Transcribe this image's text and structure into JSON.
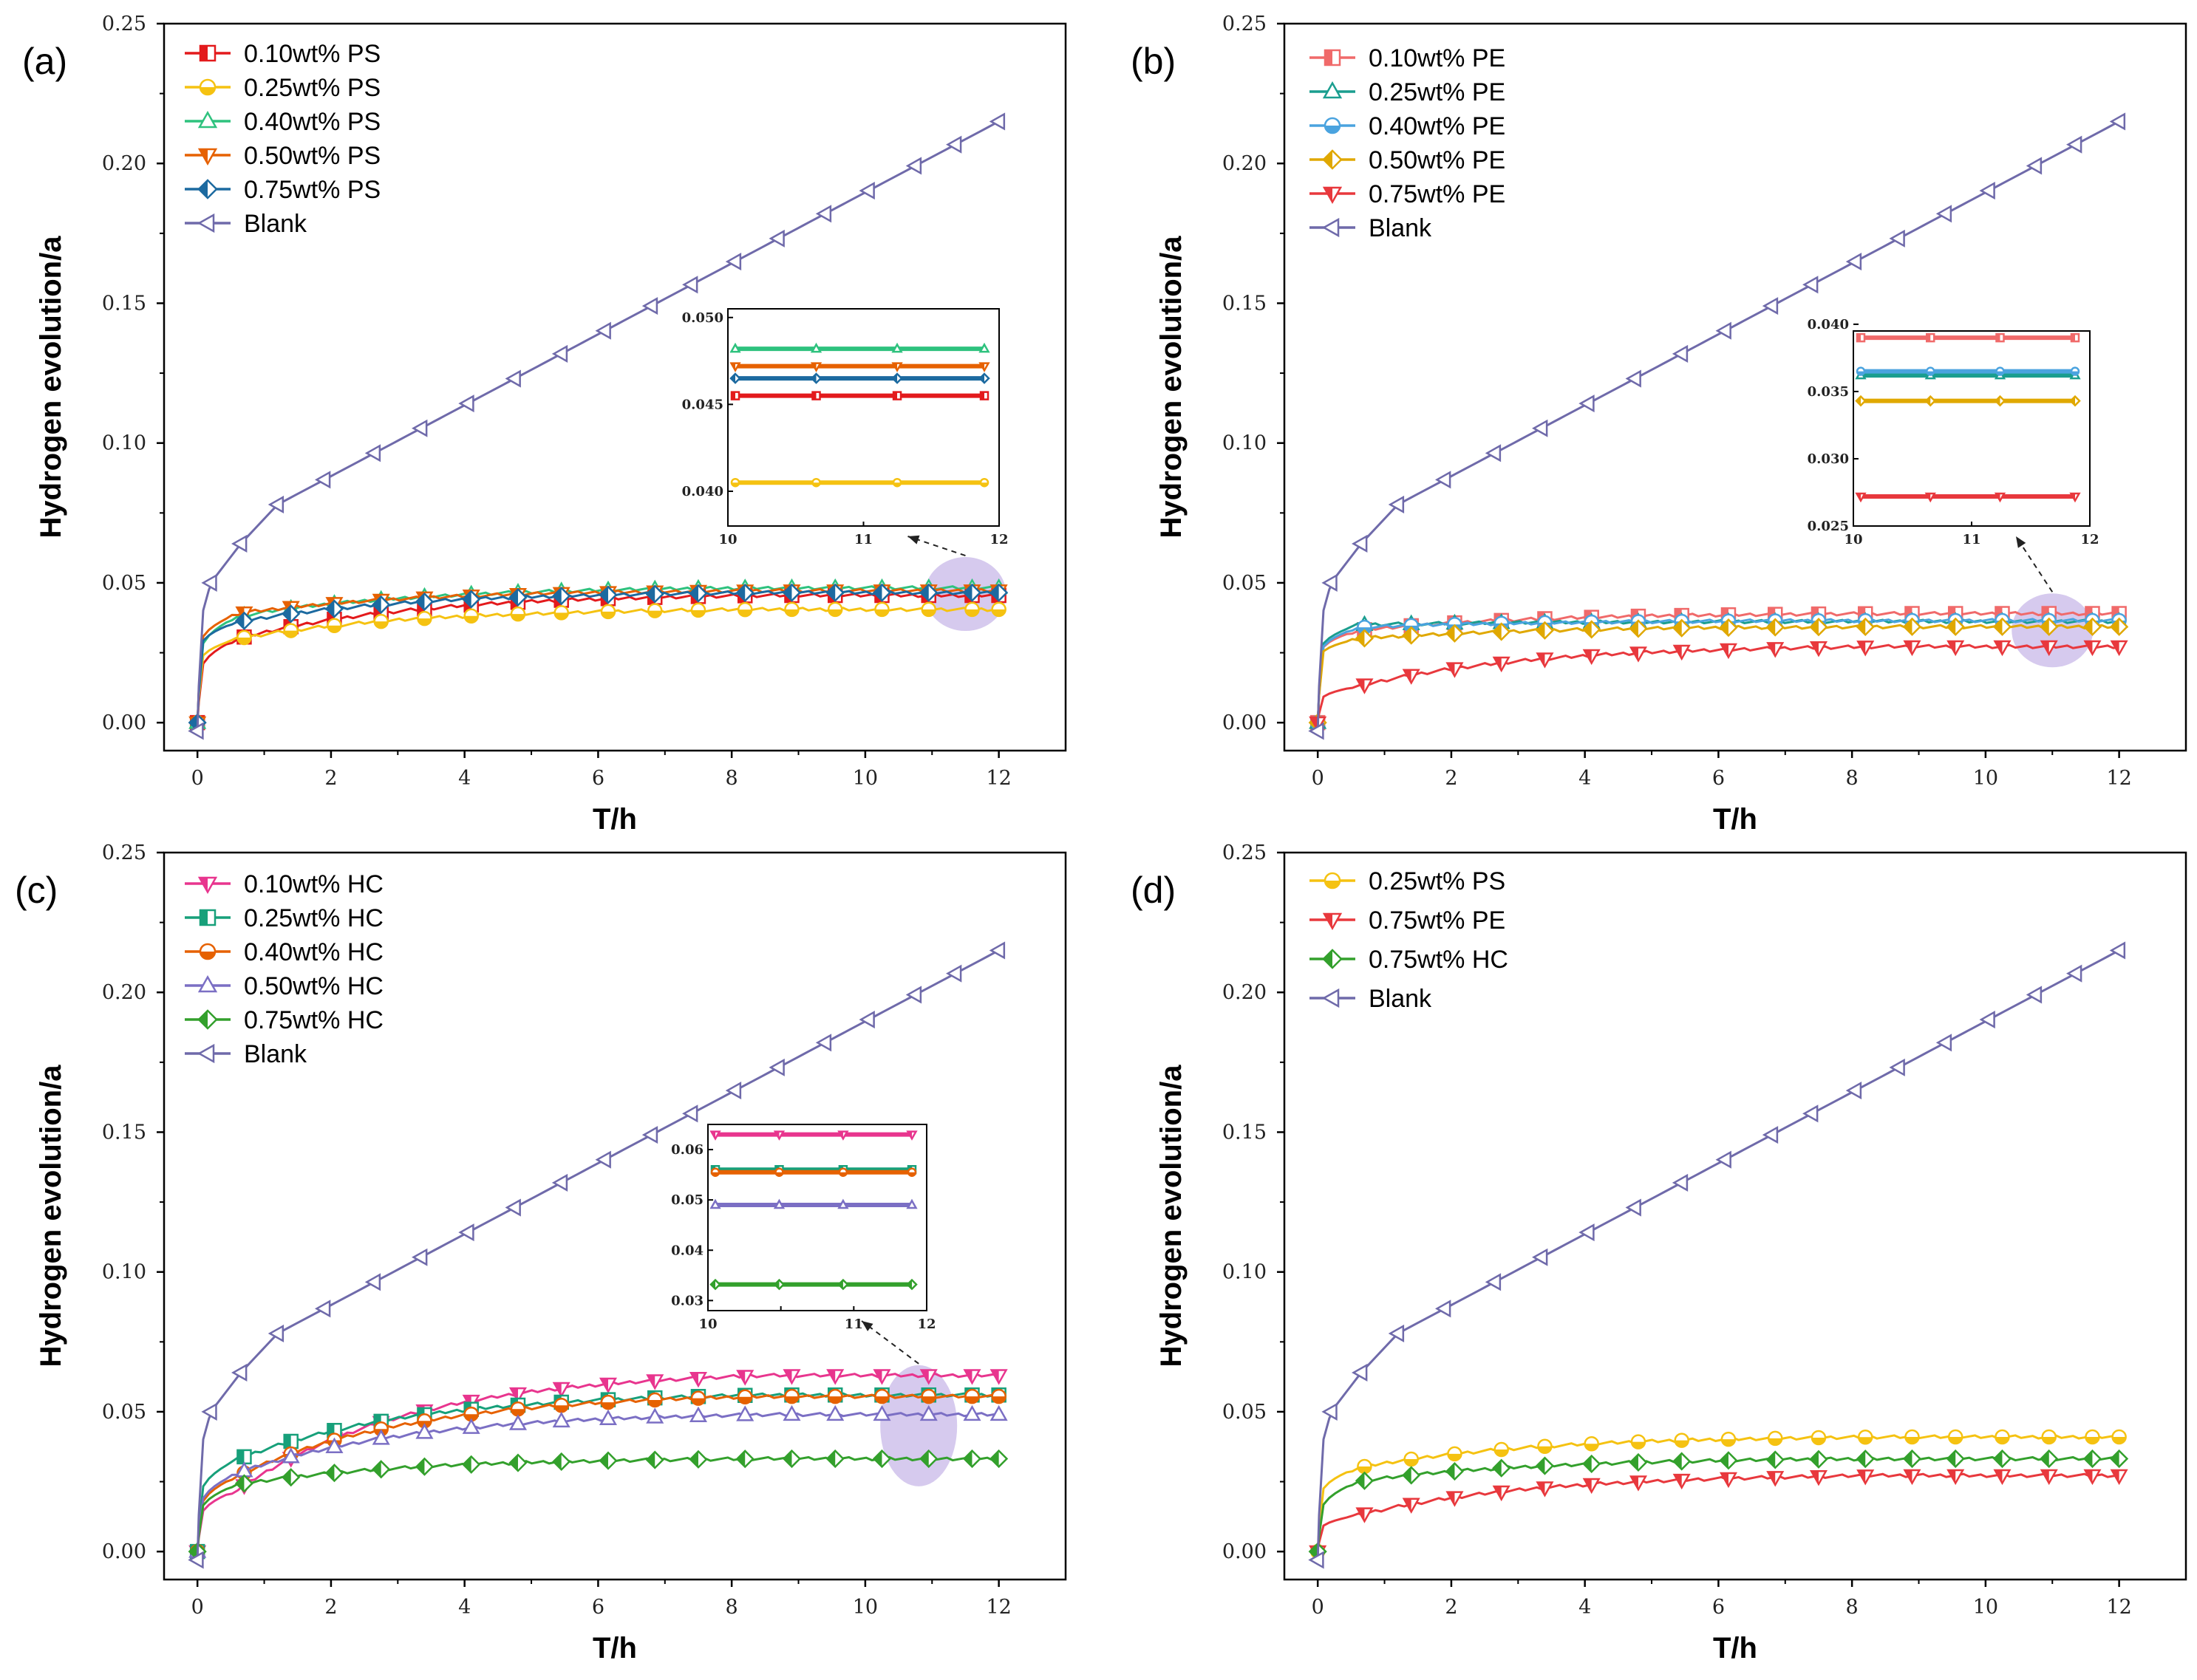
{
  "chart_data": [
    {
      "type": "line",
      "panel_label": "(a)",
      "xlabel": "T/h",
      "ylabel": "Hydrogen evolution/a",
      "xlim": [
        -0.5,
        13
      ],
      "ylim": [
        -0.01,
        0.25
      ],
      "xticks": [
        "0",
        "2",
        "4",
        "6",
        "8",
        "10",
        "12"
      ],
      "yticks": [
        "0.00",
        "0.05",
        "0.10",
        "0.15",
        "0.20",
        "0.25"
      ],
      "series": [
        {
          "name": "0.10wt% PS",
          "color": "#e31a1c",
          "marker": "square",
          "plateau": 0.0455,
          "start": 0.018,
          "knee": 0.03
        },
        {
          "name": "0.25wt% PS",
          "color": "#f5c211",
          "marker": "circle",
          "plateau": 0.0405,
          "start": 0.022,
          "knee": 0.03
        },
        {
          "name": "0.40wt% PS",
          "color": "#2ec27e",
          "marker": "triangle-up",
          "plateau": 0.0482,
          "start": 0.025,
          "knee": 0.038
        },
        {
          "name": "0.50wt% PS",
          "color": "#e66100",
          "marker": "triangle-down",
          "plateau": 0.0472,
          "start": 0.028,
          "knee": 0.039
        },
        {
          "name": "0.75wt% PS",
          "color": "#1c6aa0",
          "marker": "diamond",
          "plateau": 0.0465,
          "start": 0.027,
          "knee": 0.036
        },
        {
          "name": "Blank",
          "color": "#6f6aaa",
          "marker": "triangle-left",
          "blank": true
        }
      ],
      "inset": {
        "xlim": [
          10,
          12
        ],
        "ylim": [
          0.038,
          0.0505
        ],
        "xticks": [
          "10",
          "11",
          "12"
        ],
        "yticks": [
          "0.040",
          "0.045",
          "0.050"
        ],
        "ytick_values": [
          0.04,
          0.045,
          0.05
        ],
        "series_index": [
          0,
          1,
          2,
          3,
          4
        ]
      },
      "highlight": {
        "x": 11.5,
        "y": 0.046
      }
    },
    {
      "type": "line",
      "panel_label": "(b)",
      "xlabel": "T/h",
      "ylabel": "Hydrogen evolution/a",
      "xlim": [
        -0.5,
        13
      ],
      "ylim": [
        -0.01,
        0.25
      ],
      "xticks": [
        "0",
        "2",
        "4",
        "6",
        "8",
        "10",
        "12"
      ],
      "yticks": [
        "0.00",
        "0.05",
        "0.10",
        "0.15",
        "0.20",
        "0.25"
      ],
      "series": [
        {
          "name": "0.10wt% PE",
          "color": "#f06a6a",
          "marker": "square",
          "plateau": 0.039,
          "start": 0.025,
          "knee": 0.033
        },
        {
          "name": "0.25wt% PE",
          "color": "#1a9e8f",
          "marker": "triangle-up",
          "plateau": 0.0362,
          "start": 0.026,
          "knee": 0.035
        },
        {
          "name": "0.40wt% PE",
          "color": "#4aa3df",
          "marker": "circle",
          "plateau": 0.0365,
          "start": 0.025,
          "knee": 0.034
        },
        {
          "name": "0.50wt% PE",
          "color": "#e0a800",
          "marker": "diamond",
          "plateau": 0.0343,
          "start": 0.024,
          "knee": 0.03
        },
        {
          "name": "0.75wt% PE",
          "color": "#e8383d",
          "marker": "triangle-down",
          "plateau": 0.0272,
          "start": 0.008,
          "knee": 0.013
        },
        {
          "name": "Blank",
          "color": "#6f6aaa",
          "marker": "triangle-left",
          "blank": true
        }
      ],
      "inset": {
        "xlim": [
          10,
          12
        ],
        "ylim": [
          0.025,
          0.0395
        ],
        "xticks": [
          "10",
          "11",
          "12"
        ],
        "yticks": [
          "0.025",
          "0.030",
          "0.035",
          "0.040"
        ],
        "ytick_values": [
          0.025,
          0.03,
          0.035,
          0.04
        ],
        "series_index": [
          0,
          1,
          2,
          3,
          4
        ]
      },
      "highlight": {
        "x": 11.0,
        "y": 0.033
      }
    },
    {
      "type": "line",
      "panel_label": "(c)",
      "xlabel": "T/h",
      "ylabel": "Hydrogen evolution/a",
      "xlim": [
        -0.5,
        13
      ],
      "ylim": [
        -0.01,
        0.25
      ],
      "xticks": [
        "0",
        "2",
        "4",
        "6",
        "8",
        "10",
        "12"
      ],
      "yticks": [
        "0.00",
        "0.05",
        "0.10",
        "0.15",
        "0.20",
        "0.25"
      ],
      "series": [
        {
          "name": "0.10wt% HC",
          "color": "#e8358e",
          "marker": "triangle-down",
          "plateau": 0.063,
          "start": 0.012,
          "knee": 0.022
        },
        {
          "name": "0.25wt% HC",
          "color": "#17a07a",
          "marker": "square",
          "plateau": 0.056,
          "start": 0.02,
          "knee": 0.033
        },
        {
          "name": "0.40wt% HC",
          "color": "#e66100",
          "marker": "circle",
          "plateau": 0.0555,
          "start": 0.015,
          "knee": 0.027
        },
        {
          "name": "0.50wt% HC",
          "color": "#7b6fc4",
          "marker": "triangle-up",
          "plateau": 0.049,
          "start": 0.016,
          "knee": 0.028
        },
        {
          "name": "0.75wt% HC",
          "color": "#33a02c",
          "marker": "diamond",
          "plateau": 0.0332,
          "start": 0.014,
          "knee": 0.024
        },
        {
          "name": "Blank",
          "color": "#6f6aaa",
          "marker": "triangle-left",
          "blank": true
        }
      ],
      "inset": {
        "xlim": [
          10,
          12
        ],
        "ylim": [
          0.028,
          0.065
        ],
        "xticks": [
          "10",
          "",
          "11",
          "12"
        ],
        "yticks": [
          "0.03",
          "0.04",
          "0.05",
          "0.06"
        ],
        "ytick_values": [
          0.03,
          0.04,
          0.05,
          0.06
        ],
        "series_index": [
          0,
          1,
          2,
          3,
          4
        ]
      },
      "highlight": {
        "x": 10.8,
        "y": 0.045
      }
    },
    {
      "type": "line",
      "panel_label": "(d)",
      "xlabel": "T/h",
      "ylabel": "Hydrogen evolution/a",
      "xlim": [
        -0.5,
        13
      ],
      "ylim": [
        -0.01,
        0.25
      ],
      "xticks": [
        "0",
        "2",
        "4",
        "6",
        "8",
        "10",
        "12"
      ],
      "yticks": [
        "0.00",
        "0.05",
        "0.10",
        "0.15",
        "0.20",
        "0.25"
      ],
      "series": [
        {
          "name": "0.25wt% PS",
          "color": "#f5c211",
          "marker": "circle",
          "plateau": 0.041,
          "start": 0.02,
          "knee": 0.03
        },
        {
          "name": "0.75wt% PE",
          "color": "#e8383d",
          "marker": "triangle-down",
          "plateau": 0.0272,
          "start": 0.008,
          "knee": 0.013
        },
        {
          "name": "0.75wt% HC",
          "color": "#33a02c",
          "marker": "diamond",
          "plateau": 0.0332,
          "start": 0.014,
          "knee": 0.025
        },
        {
          "name": "Blank",
          "color": "#6f6aaa",
          "marker": "triangle-left",
          "blank": true
        }
      ]
    }
  ]
}
